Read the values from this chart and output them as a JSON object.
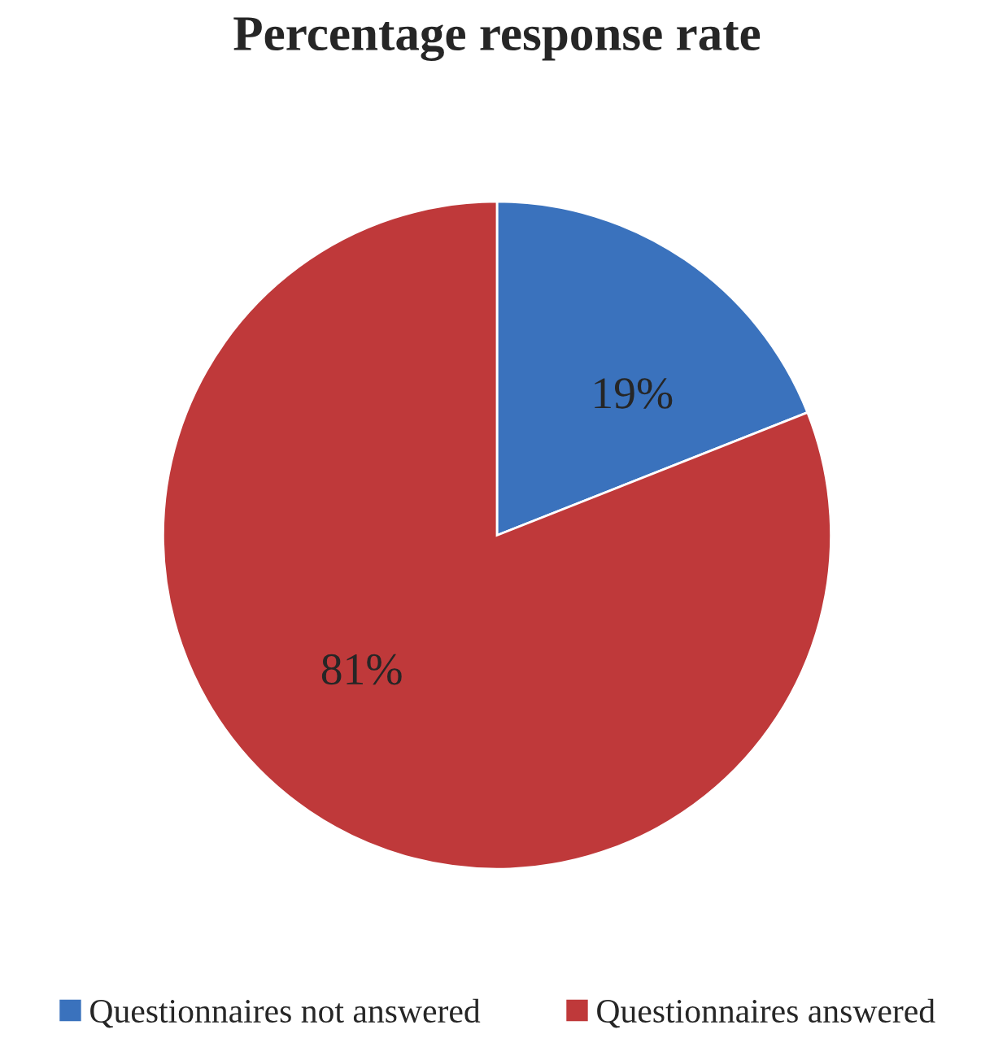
{
  "chart_data": {
    "type": "pie",
    "title": "Percentage response rate",
    "categories": [
      "Questionnaires not answered",
      "Questionnaires answered"
    ],
    "values": [
      19,
      81
    ],
    "colors": [
      "#3a72bd",
      "#bf393a"
    ],
    "value_labels": [
      "19%",
      "81%"
    ],
    "legend": "bottom"
  }
}
